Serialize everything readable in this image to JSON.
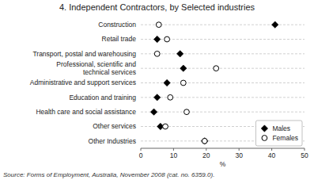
{
  "chart_data": {
    "type": "dot",
    "orientation": "horizontal",
    "title": "4. Independent Contractors, by Selected industries",
    "categories": [
      "Construction",
      "Retail trade",
      "Transport, postal and warehousing",
      "Professional, scientific and\ntechnical services",
      "Administrative and support services",
      "Education and training",
      "Health care and social assistance",
      "Other services",
      "Other Industries"
    ],
    "series": [
      {
        "name": "Males",
        "color": "#000000",
        "marker": "diamond",
        "values": [
          41.0,
          5.0,
          12.0,
          13.0,
          8.0,
          5.0,
          4.0,
          6.0,
          19.5
        ]
      },
      {
        "name": "Females",
        "color": "#000000",
        "marker": "open-circle",
        "values": [
          5.5,
          8.0,
          5.0,
          23.0,
          13.0,
          9.0,
          14.0,
          7.5,
          19.5
        ]
      }
    ],
    "x_label": "%",
    "xlim": [
      0,
      50
    ],
    "xticks": [
      0,
      10,
      20,
      30,
      40,
      50
    ],
    "grid": true,
    "legend": "lower right",
    "annotations": [
      "Source: Forms of Employment, Australia, November 2008 (cat. no. 6359.0)."
    ]
  }
}
